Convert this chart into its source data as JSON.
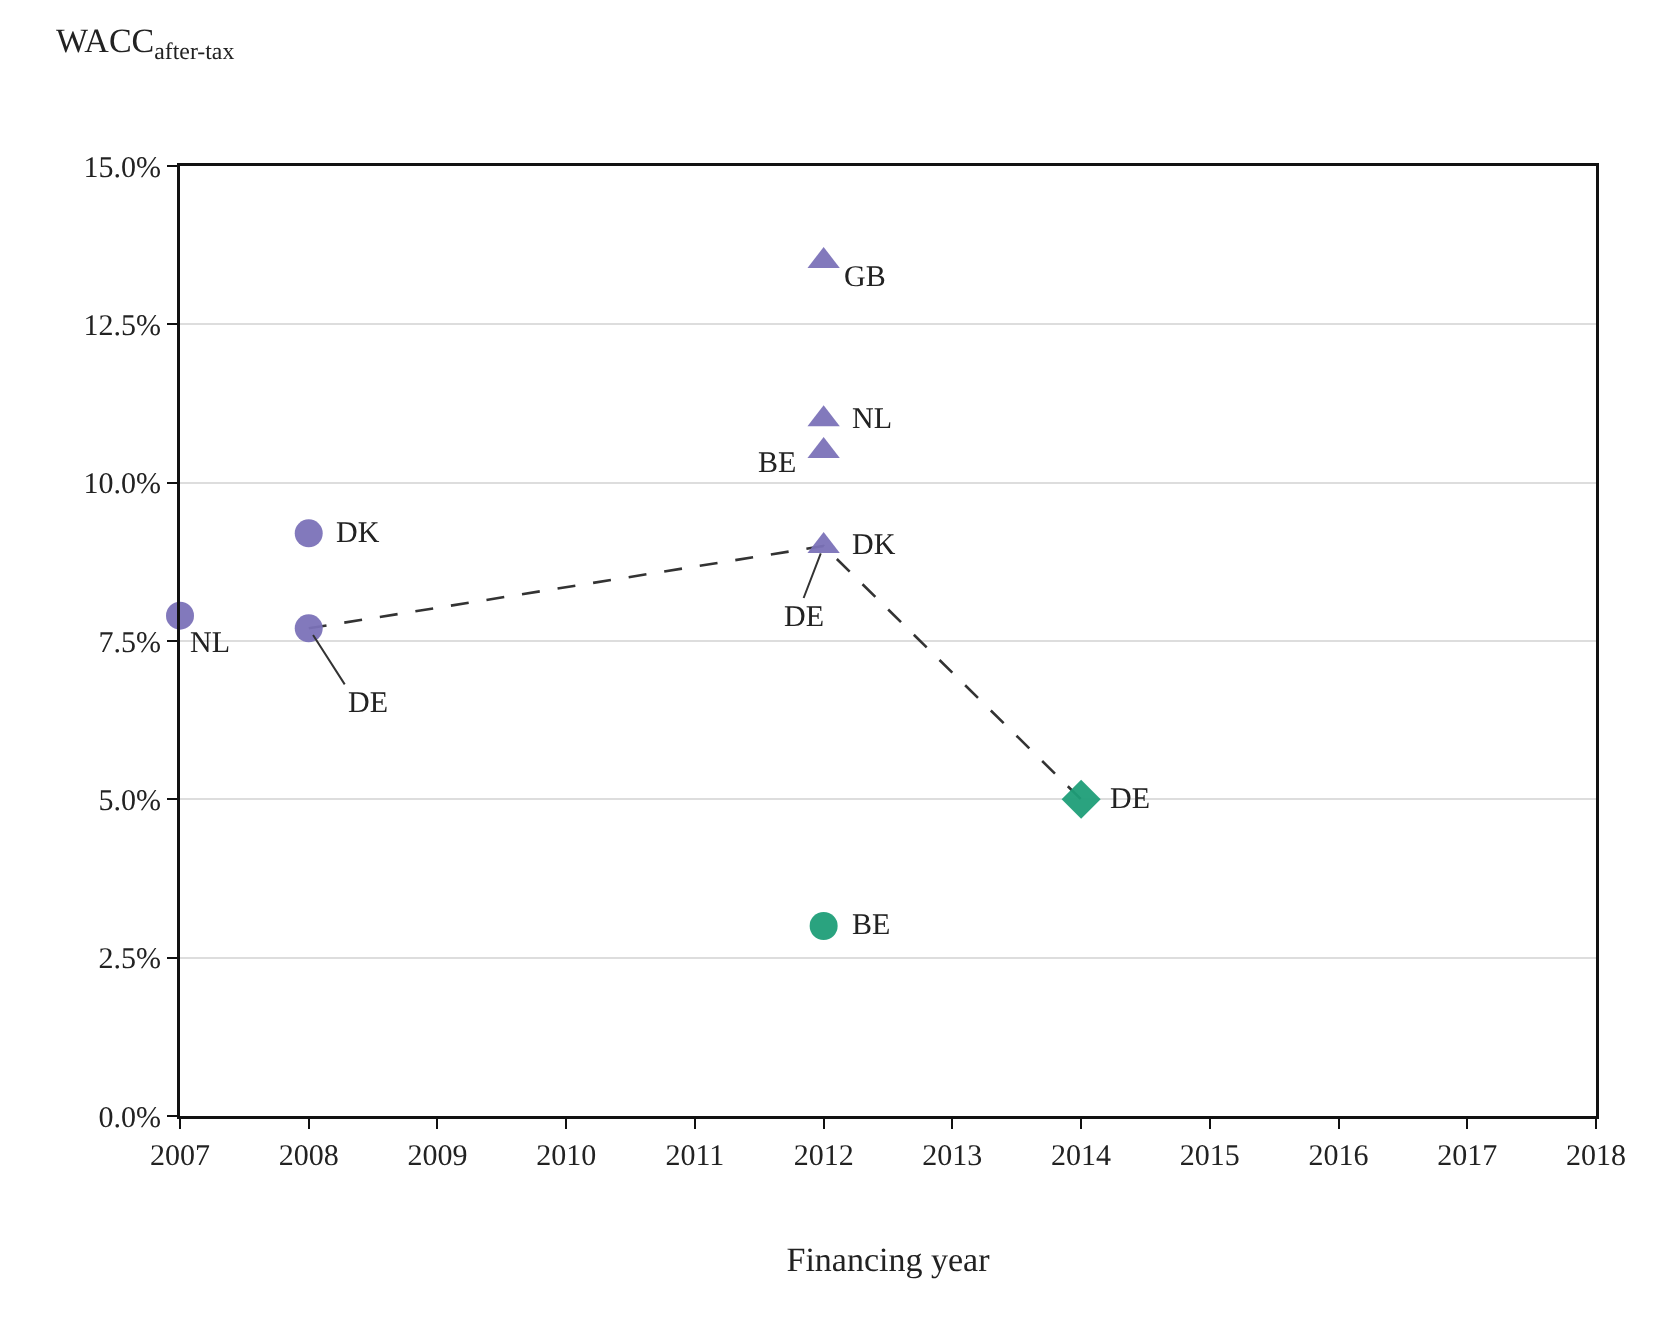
{
  "chart_data": {
    "type": "scatter",
    "xlabel": "Financing year",
    "ylabel": "WACC$_{after-tax}$",
    "xlim": [
      2007,
      2018
    ],
    "xticks": [
      2007,
      2008,
      2009,
      2010,
      2011,
      2012,
      2013,
      2014,
      2015,
      2016,
      2017,
      2018
    ],
    "ylim": [
      0,
      15
    ],
    "yticks": [
      {
        "value": 0,
        "label": "0.0%"
      },
      {
        "value": 2.5,
        "label": "2.5%"
      },
      {
        "value": 5,
        "label": "5.0%"
      },
      {
        "value": 7.5,
        "label": "7.5%"
      },
      {
        "value": 10,
        "label": "10.0%"
      },
      {
        "value": 12.5,
        "label": "12.5%"
      },
      {
        "value": 15,
        "label": "15.0%"
      }
    ],
    "grid": "y",
    "series": [
      {
        "type": "line",
        "color": "#333333",
        "x": [
          2008,
          2012,
          2014
        ],
        "values": [
          7.7,
          9.0,
          5.0
        ],
        "line_style": "dashed",
        "marker": "none"
      },
      {
        "type": "scatter",
        "color": "#7b72b8",
        "x": [
          2007,
          2008,
          2008
        ],
        "values": [
          7.9,
          9.2,
          7.7
        ],
        "marker": "circle"
      },
      {
        "type": "scatter",
        "color": "#7b72b8",
        "x": [
          2012,
          2012,
          2012,
          2012
        ],
        "values": [
          13.5,
          11.0,
          10.5,
          9.0
        ],
        "marker": "triangle"
      },
      {
        "type": "scatter",
        "color": "#1f9e78",
        "x": [
          2012
        ],
        "values": [
          3.0
        ],
        "marker": "circle"
      },
      {
        "type": "scatter",
        "color": "#1f9e78",
        "x": [
          2014
        ],
        "values": [
          5.0
        ],
        "marker": "diamond"
      }
    ],
    "annotations": [
      {
        "text": "NL",
        "x": 2007,
        "y": 7.9
      },
      {
        "text": "DK",
        "x": 2008,
        "y": 9.2
      },
      {
        "text": "DE",
        "x": 2008,
        "y": 7.7
      },
      {
        "text": "GB",
        "x": 2012,
        "y": 13.5
      },
      {
        "text": "NL",
        "x": 2012,
        "y": 11.0
      },
      {
        "text": "BE",
        "x": 2012,
        "y": 10.5
      },
      {
        "text": "DK",
        "x": 2012,
        "y": 9.0
      },
      {
        "text": "DE",
        "x": 2012,
        "y": 9.0
      },
      {
        "text": "DE",
        "x": 2014,
        "y": 5.0
      },
      {
        "text": "BE",
        "x": 2012,
        "y": 3.0
      }
    ]
  }
}
